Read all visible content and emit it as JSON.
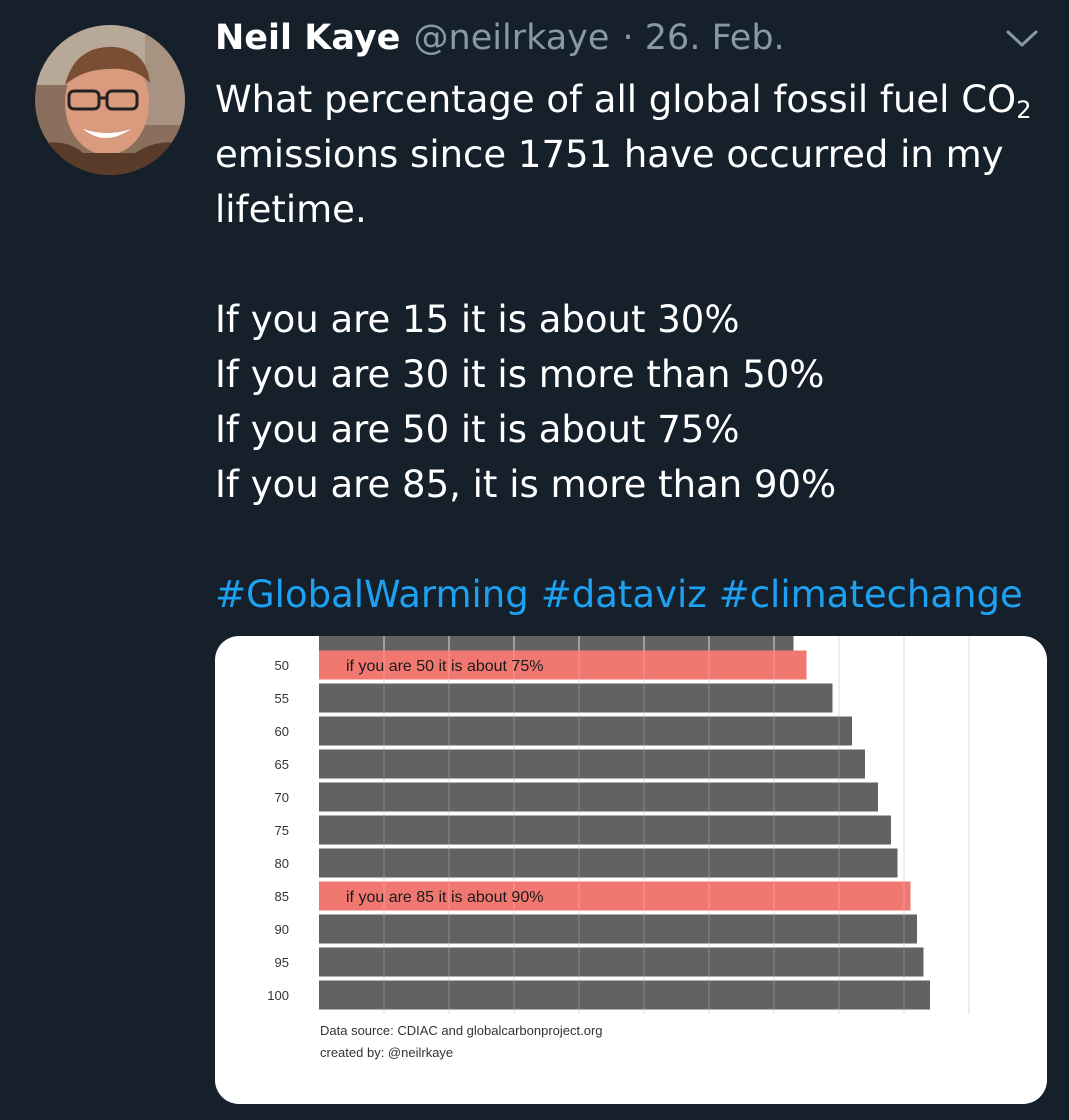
{
  "tweet": {
    "author_name": "Neil Kaye",
    "handle": "@neilrkaye",
    "date": "· 26. Feb.",
    "text_line1_pre": "What percentage of all global fossil fuel CO",
    "text_line1_sub": "2",
    "text_line2": "emissions since 1751 have occurred in my",
    "text_line3": "lifetime.",
    "stat_lines": [
      "If you are 15 it is about 30%",
      "If you are 30 it is more than 50%",
      "If you are 50 it is about 75%",
      "If you are 85, it is more than 90%"
    ],
    "hashtags": [
      "#GlobalWarming",
      "#dataviz",
      "#climatechange"
    ]
  },
  "colors": {
    "background": "#15202b",
    "hashtag": "#1da1f2",
    "bar": "#626262",
    "highlight": "#f07870"
  },
  "icons": {
    "menu": "chevron-down-icon",
    "avatar": "avatar"
  },
  "chart_data": {
    "type": "bar",
    "orientation": "horizontal",
    "ylabel_categories_unit": "age",
    "categories": [
      "50",
      "55",
      "60",
      "65",
      "70",
      "75",
      "80",
      "85",
      "90",
      "95",
      "100"
    ],
    "values": [
      75,
      79,
      82,
      84,
      86,
      88,
      89,
      91,
      92,
      93,
      94
    ],
    "xlim": [
      0,
      100
    ],
    "highlighted": [
      {
        "category": "50",
        "label": "if you are 50 it is about 75%"
      },
      {
        "category": "85",
        "label": "if you are 85 it is about 90%"
      }
    ],
    "source": "Data source: CDIAC and globalcarbonproject.org",
    "credit": "created by: @neilrkaye"
  }
}
